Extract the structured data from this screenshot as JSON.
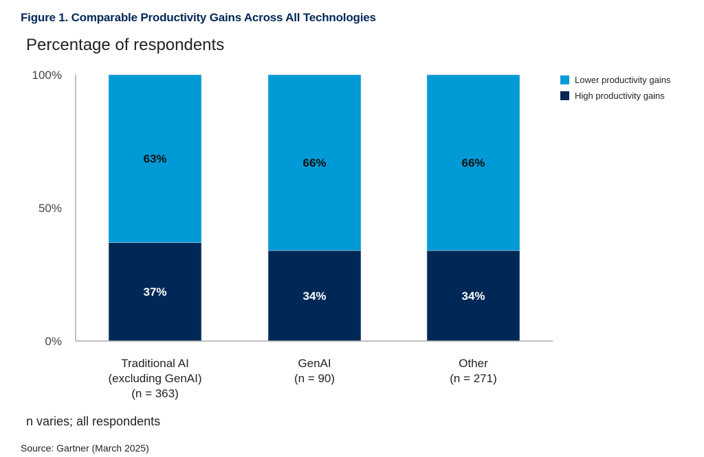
{
  "figure_title": "Figure 1. Comparable Productivity Gains Across All Technologies",
  "note": "n varies; all respondents",
  "source": "Source: Gartner (March 2025)",
  "chart_data": {
    "type": "bar",
    "stacked": true,
    "title": "Figure 1. Comparable Productivity Gains Across All Technologies",
    "ylabel": "Percentage of respondents",
    "xlabel": "",
    "ylim": [
      0,
      100
    ],
    "yticks": [
      0,
      50,
      100
    ],
    "ytick_labels": [
      "0%",
      "50%",
      "100%"
    ],
    "grid": false,
    "legend_position": "top-right",
    "categories": [
      [
        "Traditional AI",
        "(excluding GenAI)",
        "(n = 363)"
      ],
      [
        "GenAI",
        "(n = 90)"
      ],
      [
        "Other",
        "(n = 271)"
      ]
    ],
    "series": [
      {
        "name": "High productivity gains",
        "color": "#002856",
        "label_color": "#ffffff",
        "values": [
          37,
          34,
          34
        ]
      },
      {
        "name": "Lower productivity gains",
        "color": "#009AD7",
        "label_color": "#111111",
        "values": [
          63,
          66,
          66
        ]
      }
    ],
    "legend": [
      {
        "name": "Lower productivity gains",
        "color": "#009AD7"
      },
      {
        "name": "High productivity gains",
        "color": "#002856"
      }
    ]
  }
}
